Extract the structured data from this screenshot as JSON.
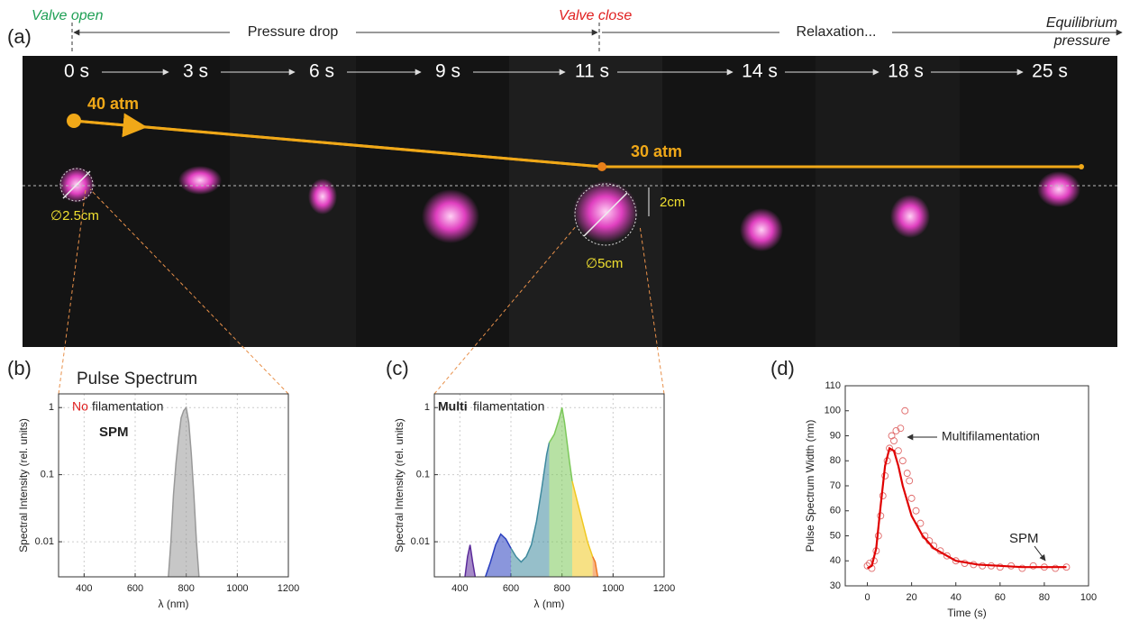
{
  "panel_a": {
    "label": "(a)",
    "valve_open": "Valve open",
    "pressure_drop": "Pressure drop",
    "valve_close": "Valve close",
    "relaxation": "Relaxation...",
    "equilibrium": [
      "Equilibrium",
      "pressure"
    ],
    "times": [
      "0 s",
      "3 s",
      "6 s",
      "9 s",
      "11 s",
      "14 s",
      "18 s",
      "25 s"
    ],
    "p_start": "40 atm",
    "p_end": "30 atm",
    "d_small": "∅2.5cm",
    "height": "2cm",
    "d_large": "∅5cm"
  },
  "chart_data": [
    {
      "type": "area",
      "label": "(b)",
      "title": "Pulse Spectrum",
      "xlabel": "λ (nm)",
      "ylabel": "Spectral Intensity (rel. units)",
      "annotations": [
        "No",
        "filamentation",
        "SPM"
      ],
      "log_y": true,
      "grid": true,
      "xlim": [
        300,
        1200
      ],
      "ylim": [
        0.003,
        1.6
      ],
      "xticks": [
        400,
        600,
        800,
        1000,
        1200
      ],
      "yticks": [
        0.01,
        0.1,
        1
      ],
      "series": [
        {
          "color": "#999999",
          "x": [
            730,
            740,
            750,
            760,
            770,
            780,
            790,
            800,
            810,
            820,
            830,
            840,
            850
          ],
          "values": [
            0.003,
            0.01,
            0.05,
            0.15,
            0.35,
            0.7,
            0.9,
            1.0,
            0.6,
            0.2,
            0.05,
            0.01,
            0.003
          ]
        }
      ]
    },
    {
      "type": "area",
      "label": "(c)",
      "xlabel": "λ (nm)",
      "ylabel": "Spectral Intensity (rel. units)",
      "annotations": [
        "Multi",
        "filamentation"
      ],
      "log_y": true,
      "grid": true,
      "xlim": [
        300,
        1200
      ],
      "ylim": [
        0.003,
        1.6
      ],
      "xticks": [
        400,
        600,
        800,
        1000,
        1200
      ],
      "yticks": [
        0.01,
        0.1,
        1
      ],
      "series": [
        {
          "color": "#5b2a9a",
          "x": [
            420,
            430,
            440,
            450,
            460
          ],
          "values": [
            0.003,
            0.006,
            0.009,
            0.005,
            0.003
          ]
        },
        {
          "color": "#2a3fc0",
          "x": [
            500,
            520,
            540,
            560,
            580,
            600
          ],
          "values": [
            0.003,
            0.005,
            0.009,
            0.013,
            0.011,
            0.008
          ]
        },
        {
          "color": "#3f8a9e",
          "x": [
            600,
            620,
            640,
            660,
            680,
            700,
            720,
            740,
            750
          ],
          "values": [
            0.008,
            0.006,
            0.005,
            0.006,
            0.009,
            0.02,
            0.06,
            0.2,
            0.3
          ]
        },
        {
          "color": "#7cc85a",
          "x": [
            750,
            770,
            790,
            800,
            810,
            820,
            830,
            840
          ],
          "values": [
            0.3,
            0.4,
            0.7,
            1.0,
            0.6,
            0.3,
            0.15,
            0.08
          ]
        },
        {
          "color": "#f0c820",
          "x": [
            840,
            860,
            880,
            900,
            920
          ],
          "values": [
            0.08,
            0.04,
            0.02,
            0.01,
            0.006
          ]
        },
        {
          "color": "#f07820",
          "x": [
            920,
            930,
            940
          ],
          "values": [
            0.006,
            0.005,
            0.003
          ]
        }
      ]
    },
    {
      "type": "scatter",
      "label": "(d)",
      "xlabel": "Time (s)",
      "ylabel": "Pulse Spectrum Width (nm)",
      "annotations": [
        "Multifilamentation",
        "SPM"
      ],
      "log_y": false,
      "grid": false,
      "xlim": [
        -10,
        100
      ],
      "ylim": [
        30,
        110
      ],
      "xticks": [
        0,
        20,
        40,
        60,
        80,
        100
      ],
      "yticks": [
        30,
        40,
        50,
        60,
        70,
        80,
        90,
        100,
        110
      ],
      "series": [
        {
          "type": "marker",
          "color": "#e06a6a",
          "x": [
            0,
            1,
            2,
            3,
            4,
            5,
            6,
            7,
            8,
            9,
            10,
            11,
            12,
            13,
            14,
            15,
            16,
            17,
            18,
            19,
            20,
            22,
            24,
            26,
            28,
            30,
            33,
            36,
            40,
            44,
            48,
            52,
            56,
            60,
            65,
            70,
            75,
            80,
            85,
            90
          ],
          "values": [
            38,
            39,
            37,
            40,
            44,
            50,
            58,
            66,
            74,
            80,
            85,
            90,
            88,
            92,
            84,
            93,
            80,
            100,
            75,
            72,
            65,
            60,
            55,
            50,
            48,
            46,
            44,
            42,
            40,
            39,
            38.5,
            38,
            38,
            37.5,
            38,
            37,
            38,
            37.5,
            37,
            37.5
          ]
        },
        {
          "type": "line",
          "color": "#e00000",
          "x": [
            0,
            2,
            4,
            6,
            8,
            10,
            12,
            14,
            16,
            20,
            25,
            30,
            40,
            50,
            60,
            70,
            80,
            90
          ],
          "values": [
            37,
            38,
            45,
            62,
            78,
            85,
            84,
            78,
            70,
            58,
            50,
            45,
            40,
            38.5,
            38,
            37.5,
            37.5,
            37.5
          ]
        }
      ]
    }
  ]
}
